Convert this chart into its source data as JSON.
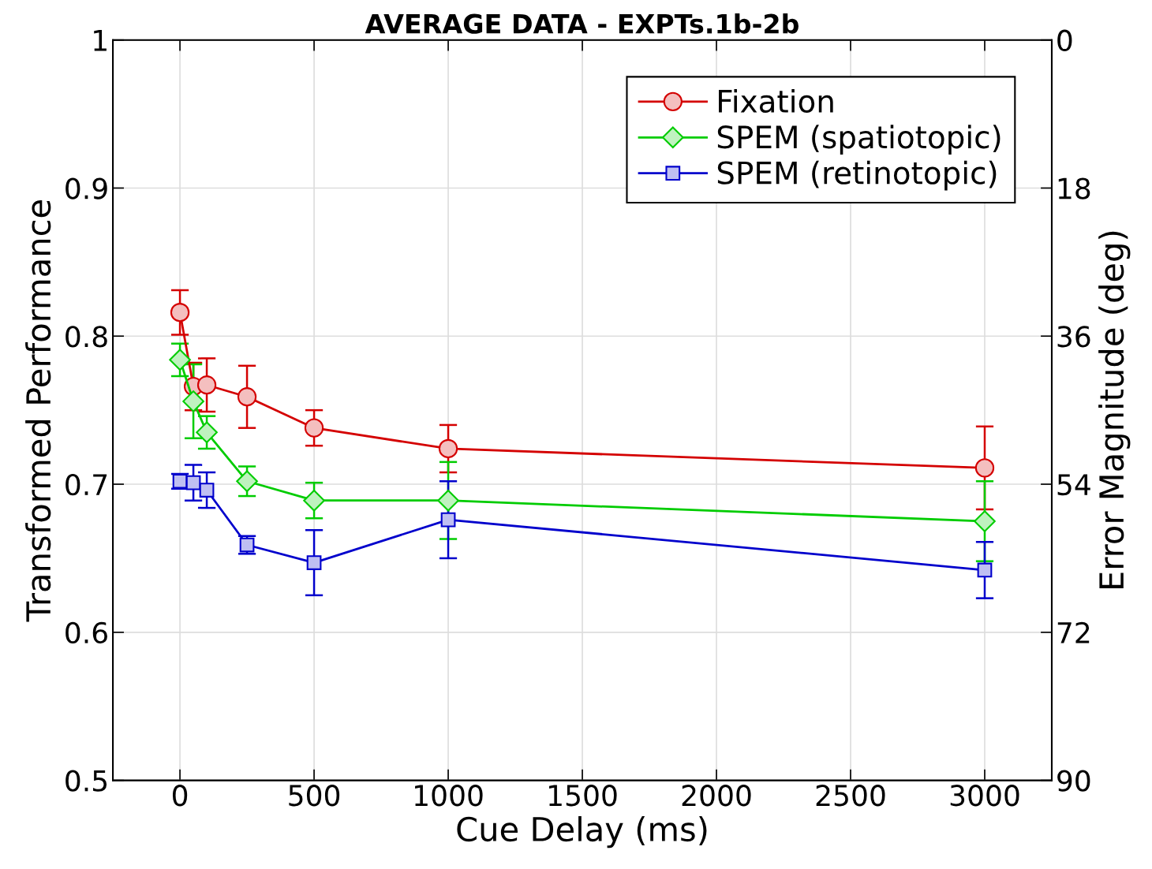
{
  "chart_data": {
    "type": "line",
    "title": "AVERAGE DATA - EXPTs.1b-2b",
    "xlabel": "Cue Delay (ms)",
    "ylabel": "Transformed Performance",
    "y2label": "Error Magnitude (deg)",
    "x": [
      0,
      50,
      100,
      250,
      500,
      1000,
      3000
    ],
    "series": [
      {
        "name": "Fixation",
        "color": "#d40000",
        "marker": "circle",
        "values": [
          0.816,
          0.766,
          0.767,
          0.759,
          0.738,
          0.724,
          0.711
        ],
        "errors": [
          0.015,
          0.016,
          0.018,
          0.021,
          0.012,
          0.016,
          0.028
        ]
      },
      {
        "name": "SPEM (spatiotopic)",
        "color": "#00cc00",
        "marker": "diamond",
        "values": [
          0.784,
          0.756,
          0.735,
          0.702,
          0.689,
          0.689,
          0.675
        ],
        "errors": [
          0.011,
          0.025,
          0.011,
          0.01,
          0.012,
          0.026,
          0.027
        ]
      },
      {
        "name": "SPEM (retinotopic)",
        "color": "#0000cc",
        "marker": "square",
        "values": [
          0.702,
          0.701,
          0.696,
          0.659,
          0.647,
          0.676,
          0.642
        ],
        "errors": [
          0.005,
          0.012,
          0.012,
          0.006,
          0.022,
          0.026,
          0.019
        ]
      }
    ],
    "xlim": [
      -250,
      3250
    ],
    "xticks": [
      0,
      500,
      1000,
      1500,
      2000,
      2500,
      3000
    ],
    "ylim": [
      0.5,
      1
    ],
    "yticks": [
      0.5,
      0.6,
      0.7,
      0.8,
      0.9,
      1
    ],
    "y2lim": [
      90,
      0
    ],
    "y2ticks": [
      0,
      18,
      36,
      54,
      72,
      90
    ],
    "grid": true,
    "legend": "top right"
  }
}
